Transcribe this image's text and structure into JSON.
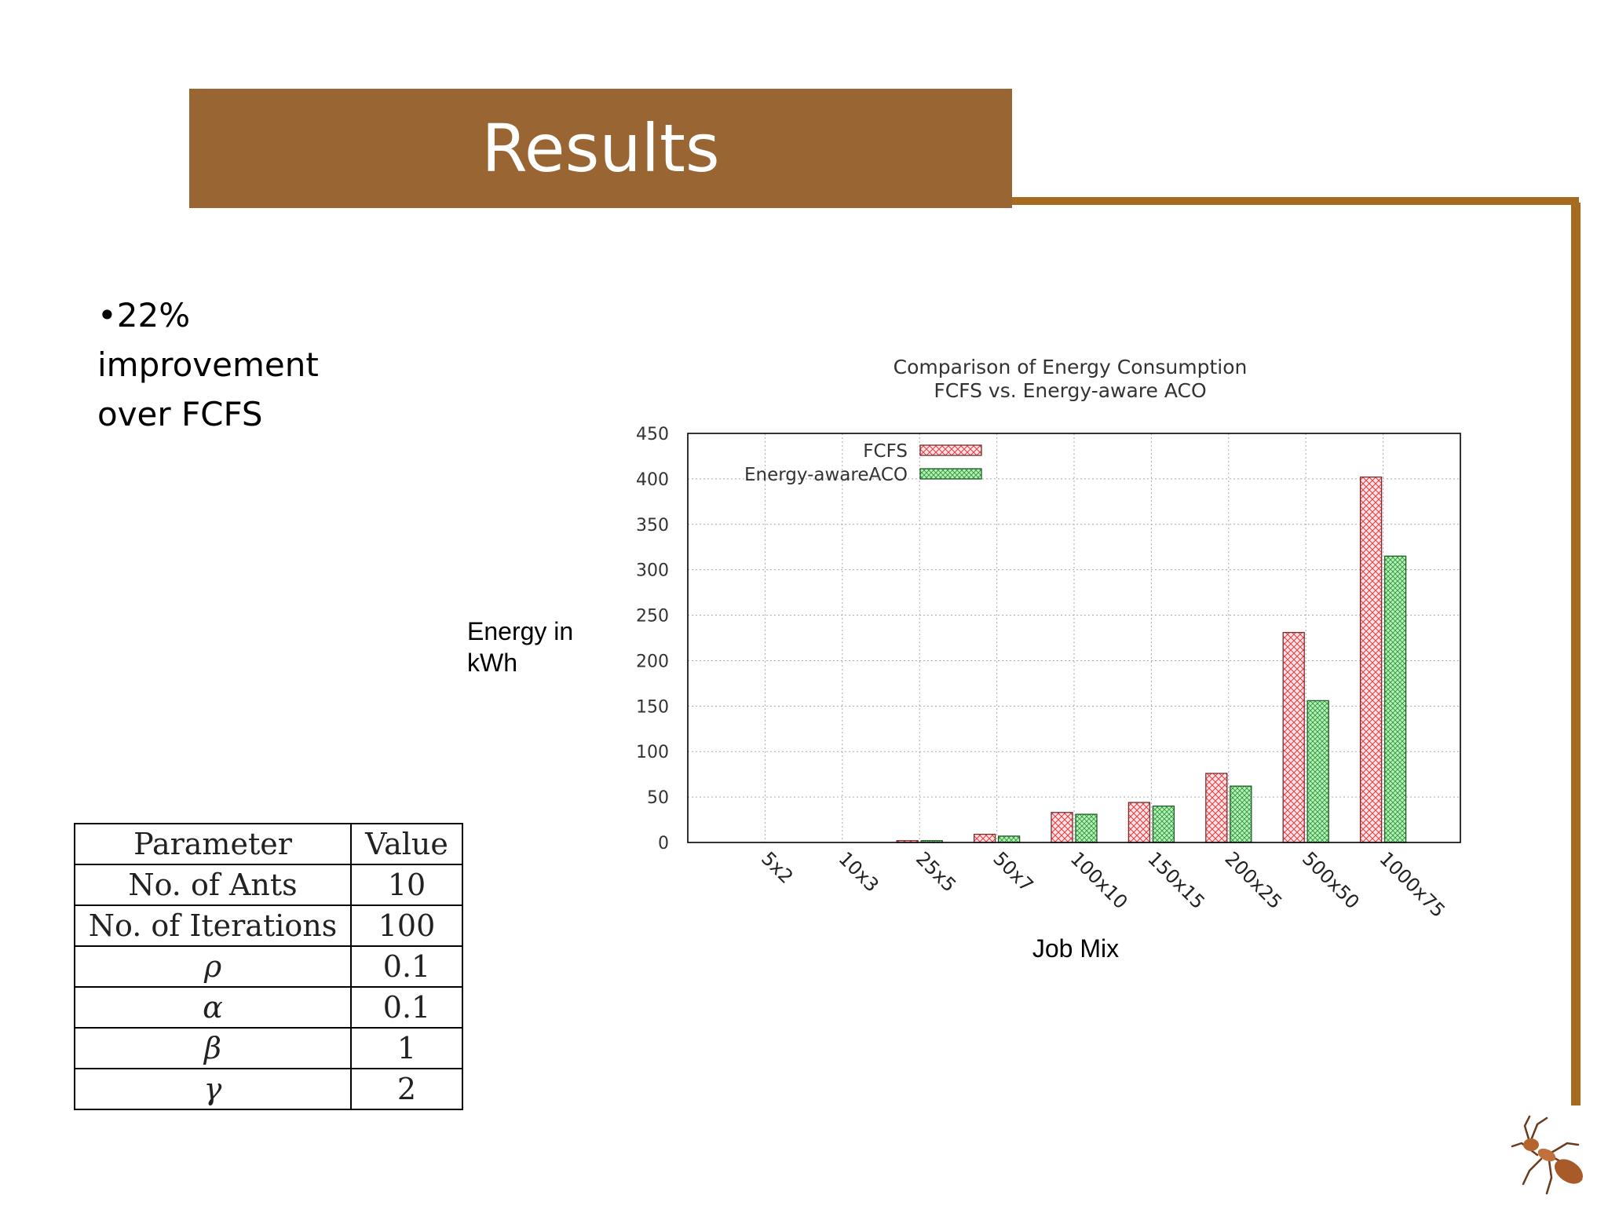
{
  "slide": {
    "title": "Results",
    "bullet": "•22% improvement over FCFS"
  },
  "table": {
    "header": [
      "Parameter",
      "Value"
    ],
    "rows": [
      [
        "No. of Ants",
        "10"
      ],
      [
        "No. of Iterations",
        "100"
      ],
      [
        "ρ",
        "0.1"
      ],
      [
        "α",
        "0.1"
      ],
      [
        "β",
        "1"
      ],
      [
        "γ",
        "2"
      ]
    ]
  },
  "chart_data": {
    "type": "bar",
    "title": "Comparison of Energy Consumption",
    "subtitle": "FCFS vs. Energy-aware ACO",
    "xlabel": "Job Mix",
    "ylabel": "Energy in kWh",
    "categories": [
      "5x2",
      "10x3",
      "25x5",
      "50x7",
      "100x10",
      "150x15",
      "200x25",
      "500x50",
      "1000x75"
    ],
    "ylim": [
      0,
      450
    ],
    "yticks": [
      0,
      50,
      100,
      150,
      200,
      250,
      300,
      350,
      400,
      450
    ],
    "grid": true,
    "legend_position": "top-left",
    "series": [
      {
        "name": "FCFS",
        "color": "#f4a6a6",
        "values": [
          0,
          0,
          2,
          9,
          33,
          44,
          76,
          231,
          402
        ]
      },
      {
        "name": "Energy-awareACO",
        "color": "#9be39b",
        "values": [
          0,
          0,
          2,
          7,
          31,
          40,
          62,
          156,
          315
        ]
      }
    ]
  }
}
